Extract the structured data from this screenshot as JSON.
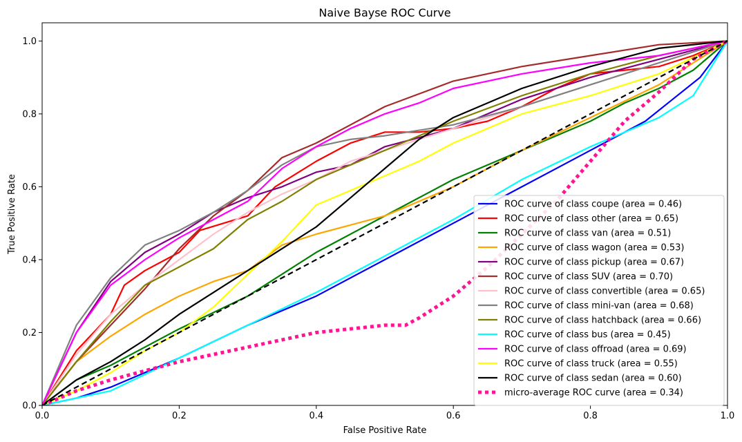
{
  "chart_data": {
    "type": "line",
    "title": "Naive Bayse ROC Curve",
    "xlabel": "False Positive Rate",
    "ylabel": "True Positive Rate",
    "xlim": [
      0.0,
      1.0
    ],
    "ylim": [
      0.0,
      1.05
    ],
    "xticks": [
      "0.0",
      "0.2",
      "0.4",
      "0.6",
      "0.8",
      "1.0"
    ],
    "yticks": [
      "0.0",
      "0.2",
      "0.4",
      "0.6",
      "0.8",
      "1.0"
    ],
    "grid": false,
    "legend_position": "bottom-right",
    "series": [
      {
        "name": "ROC curve of class coupe (area = 0.46)",
        "color": "#0000ff",
        "style": "solid",
        "x": [
          0,
          0.05,
          0.1,
          0.15,
          0.2,
          0.3,
          0.4,
          0.5,
          0.6,
          0.7,
          0.8,
          0.88,
          0.92,
          0.96,
          1.0
        ],
        "y": [
          0,
          0.02,
          0.05,
          0.09,
          0.13,
          0.22,
          0.3,
          0.4,
          0.5,
          0.6,
          0.7,
          0.78,
          0.84,
          0.9,
          1.0
        ]
      },
      {
        "name": "ROC curve of class other (area = 0.65)",
        "color": "#ff0000",
        "style": "solid",
        "x": [
          0,
          0.05,
          0.1,
          0.12,
          0.15,
          0.2,
          0.23,
          0.3,
          0.34,
          0.4,
          0.45,
          0.5,
          0.55,
          0.6,
          0.65,
          0.7,
          0.75,
          0.8,
          0.85,
          0.9,
          0.95,
          1.0
        ],
        "y": [
          0,
          0.15,
          0.25,
          0.33,
          0.37,
          0.42,
          0.48,
          0.52,
          0.6,
          0.67,
          0.72,
          0.75,
          0.75,
          0.76,
          0.78,
          0.82,
          0.87,
          0.91,
          0.92,
          0.93,
          0.96,
          1.0
        ]
      },
      {
        "name": "ROC curve of class van (area = 0.51)",
        "color": "#008000",
        "style": "solid",
        "x": [
          0,
          0.05,
          0.1,
          0.2,
          0.3,
          0.4,
          0.5,
          0.6,
          0.7,
          0.8,
          0.85,
          0.9,
          0.95,
          1.0
        ],
        "y": [
          0,
          0.07,
          0.11,
          0.21,
          0.3,
          0.42,
          0.52,
          0.62,
          0.7,
          0.78,
          0.83,
          0.87,
          0.92,
          1.0
        ]
      },
      {
        "name": "ROC curve of class wagon (area = 0.53)",
        "color": "#ffa500",
        "style": "solid",
        "x": [
          0,
          0.05,
          0.1,
          0.15,
          0.2,
          0.25,
          0.3,
          0.35,
          0.4,
          0.5,
          0.6,
          0.7,
          0.8,
          0.9,
          1.0
        ],
        "y": [
          0,
          0.12,
          0.19,
          0.25,
          0.3,
          0.34,
          0.37,
          0.44,
          0.47,
          0.52,
          0.6,
          0.7,
          0.79,
          0.88,
          1.0
        ]
      },
      {
        "name": "ROC curve of class pickup (area = 0.67)",
        "color": "#800080",
        "style": "solid",
        "x": [
          0,
          0.05,
          0.1,
          0.15,
          0.2,
          0.25,
          0.3,
          0.35,
          0.4,
          0.45,
          0.5,
          0.6,
          0.7,
          0.8,
          0.9,
          1.0
        ],
        "y": [
          0,
          0.2,
          0.34,
          0.42,
          0.47,
          0.53,
          0.57,
          0.6,
          0.64,
          0.66,
          0.71,
          0.76,
          0.84,
          0.9,
          0.95,
          1.0
        ]
      },
      {
        "name": "ROC curve of class SUV (area = 0.70)",
        "color": "#a52a2a",
        "style": "solid",
        "x": [
          0,
          0.05,
          0.1,
          0.15,
          0.2,
          0.25,
          0.3,
          0.35,
          0.4,
          0.5,
          0.6,
          0.7,
          0.8,
          0.9,
          1.0
        ],
        "y": [
          0,
          0.12,
          0.22,
          0.32,
          0.43,
          0.52,
          0.59,
          0.68,
          0.72,
          0.82,
          0.89,
          0.93,
          0.96,
          0.99,
          1.0
        ]
      },
      {
        "name": "ROC curve of class convertible (area = 0.65)",
        "color": "#ffc0cb",
        "style": "solid",
        "x": [
          0,
          0.05,
          0.1,
          0.15,
          0.2,
          0.25,
          0.3,
          0.35,
          0.4,
          0.45,
          0.5,
          0.55,
          0.6,
          0.7,
          0.8,
          0.9,
          1.0
        ],
        "y": [
          0,
          0.14,
          0.25,
          0.33,
          0.4,
          0.47,
          0.53,
          0.58,
          0.62,
          0.67,
          0.7,
          0.73,
          0.76,
          0.82,
          0.88,
          0.94,
          1.0
        ]
      },
      {
        "name": "ROC curve of class mini-van (area = 0.68)",
        "color": "#808080",
        "style": "solid",
        "x": [
          0,
          0.05,
          0.1,
          0.15,
          0.2,
          0.25,
          0.3,
          0.35,
          0.4,
          0.45,
          0.5,
          0.6,
          0.7,
          0.8,
          0.9,
          1.0
        ],
        "y": [
          0,
          0.22,
          0.35,
          0.44,
          0.48,
          0.53,
          0.59,
          0.66,
          0.71,
          0.73,
          0.74,
          0.77,
          0.82,
          0.88,
          0.94,
          1.0
        ]
      },
      {
        "name": "ROC curve of class hatchback (area = 0.66)",
        "color": "#808000",
        "style": "solid",
        "x": [
          0,
          0.05,
          0.1,
          0.15,
          0.2,
          0.25,
          0.3,
          0.35,
          0.4,
          0.45,
          0.5,
          0.55,
          0.6,
          0.7,
          0.8,
          0.9,
          1.0
        ],
        "y": [
          0,
          0.12,
          0.23,
          0.33,
          0.38,
          0.43,
          0.51,
          0.56,
          0.62,
          0.66,
          0.7,
          0.74,
          0.78,
          0.85,
          0.91,
          0.96,
          1.0
        ]
      },
      {
        "name": "ROC curve of class bus (area = 0.45)",
        "color": "#00ffff",
        "style": "solid",
        "x": [
          0,
          0.1,
          0.2,
          0.3,
          0.4,
          0.5,
          0.6,
          0.7,
          0.8,
          0.9,
          0.95,
          1.0
        ],
        "y": [
          0,
          0.04,
          0.13,
          0.22,
          0.31,
          0.41,
          0.51,
          0.62,
          0.71,
          0.79,
          0.85,
          1.0
        ]
      },
      {
        "name": "ROC curve of class offroad (area = 0.69)",
        "color": "#ff00ff",
        "style": "solid",
        "x": [
          0,
          0.05,
          0.1,
          0.15,
          0.2,
          0.25,
          0.3,
          0.35,
          0.4,
          0.45,
          0.5,
          0.55,
          0.6,
          0.7,
          0.8,
          0.9,
          1.0
        ],
        "y": [
          0,
          0.2,
          0.33,
          0.4,
          0.46,
          0.51,
          0.56,
          0.65,
          0.71,
          0.76,
          0.8,
          0.83,
          0.87,
          0.91,
          0.94,
          0.96,
          1.0
        ]
      },
      {
        "name": "ROC curve of class truck (area = 0.55)",
        "color": "#ffff00",
        "style": "solid",
        "x": [
          0,
          0.05,
          0.1,
          0.15,
          0.2,
          0.25,
          0.3,
          0.35,
          0.4,
          0.45,
          0.5,
          0.55,
          0.6,
          0.7,
          0.8,
          0.9,
          1.0
        ],
        "y": [
          0,
          0.04,
          0.09,
          0.15,
          0.2,
          0.27,
          0.36,
          0.45,
          0.55,
          0.59,
          0.63,
          0.67,
          0.72,
          0.8,
          0.85,
          0.91,
          1.0
        ]
      },
      {
        "name": "ROC curve of class sedan (area = 0.60)",
        "color": "#000000",
        "style": "solid",
        "x": [
          0,
          0.05,
          0.1,
          0.15,
          0.2,
          0.25,
          0.3,
          0.35,
          0.4,
          0.45,
          0.5,
          0.55,
          0.6,
          0.7,
          0.8,
          0.9,
          1.0
        ],
        "y": [
          0,
          0.07,
          0.12,
          0.18,
          0.25,
          0.31,
          0.37,
          0.43,
          0.49,
          0.57,
          0.65,
          0.73,
          0.79,
          0.87,
          0.93,
          0.98,
          1.0
        ]
      },
      {
        "name": "micro-average ROC curve (area = 0.34)",
        "color": "#ff1493",
        "style": "dotted",
        "x": [
          0,
          0.05,
          0.1,
          0.2,
          0.3,
          0.4,
          0.45,
          0.5,
          0.53,
          0.55,
          0.6,
          0.65,
          0.7,
          0.75,
          0.8,
          0.85,
          0.9,
          0.95,
          1.0
        ],
        "y": [
          0,
          0.04,
          0.07,
          0.12,
          0.16,
          0.2,
          0.21,
          0.22,
          0.22,
          0.24,
          0.3,
          0.38,
          0.47,
          0.56,
          0.67,
          0.78,
          0.86,
          0.95,
          1.0
        ]
      },
      {
        "name": "",
        "color": "#000000",
        "style": "dashed",
        "legend": false,
        "x": [
          0,
          1
        ],
        "y": [
          0,
          1
        ]
      }
    ]
  }
}
